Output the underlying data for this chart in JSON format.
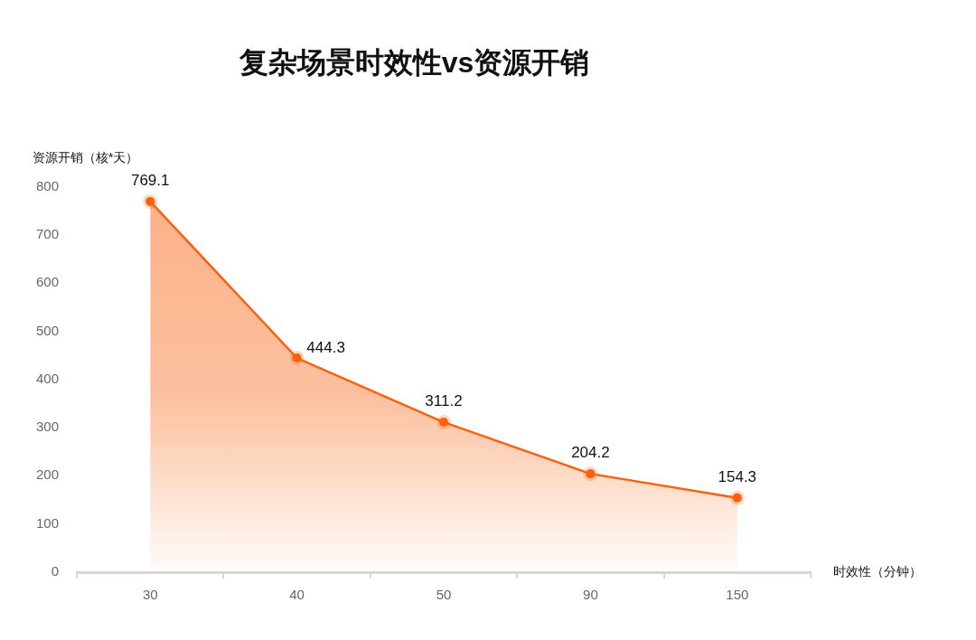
{
  "chart_data": {
    "type": "area",
    "title": "复杂场景时效性vs资源开销",
    "xlabel": "时效性（分钟）",
    "ylabel": "资源开销（核*天）",
    "categories": [
      "30",
      "40",
      "50",
      "90",
      "150"
    ],
    "series": [
      {
        "color": "#f8620f",
        "values": [
          769.1,
          444.3,
          311.2,
          204.2,
          154.3
        ]
      }
    ],
    "ylim": [
      0,
      800
    ],
    "yticks": [
      0,
      100,
      200,
      300,
      400,
      500,
      600,
      700,
      800
    ],
    "grid": false,
    "legend": false,
    "marker": "circle",
    "line_style": "solid",
    "data_labels": true
  }
}
